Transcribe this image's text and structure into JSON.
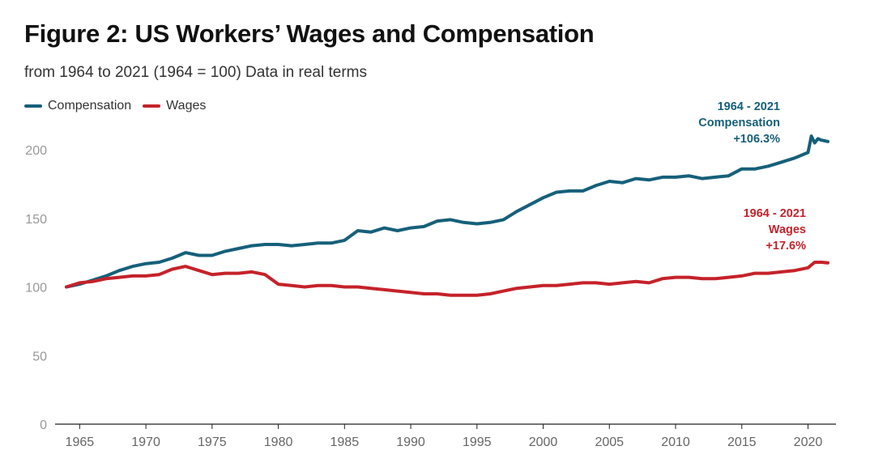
{
  "header": {
    "title": "Figure 2: US Workers’ Wages and Compensation",
    "subtitle": "from 1964 to 2021 (1964 = 100) Data in real terms"
  },
  "legend": {
    "items": [
      {
        "label": "Compensation",
        "color": "#16607a"
      },
      {
        "label": "Wages",
        "color": "#c5222a"
      }
    ]
  },
  "annotations": {
    "compensation": {
      "line1": "1964 - 2021",
      "line2": "Compensation",
      "line3": "+106.3%",
      "color": "#16607a"
    },
    "wages": {
      "line1": "1964 - 2021",
      "line2": "Wages",
      "line3": "+17.6%",
      "color": "#c5222a"
    }
  },
  "chart_data": {
    "type": "line",
    "title": "Figure 2: US Workers’ Wages and Compensation",
    "subtitle": "from 1964 to 2021 (1964 = 100) Data in real terms",
    "xlabel": "",
    "ylabel": "",
    "xlim": [
      1963.5,
      2022.5
    ],
    "ylim": [
      0,
      200
    ],
    "yticks": [
      0,
      50,
      100,
      150,
      200
    ],
    "xticks": [
      1965,
      1970,
      1975,
      1980,
      1985,
      1990,
      1995,
      2000,
      2005,
      2010,
      2015,
      2020
    ],
    "grid": false,
    "legend_position": "top-left",
    "series": [
      {
        "name": "Compensation",
        "color": "#16607a",
        "x": [
          1964,
          1965,
          1966,
          1967,
          1968,
          1969,
          1970,
          1971,
          1972,
          1973,
          1974,
          1975,
          1976,
          1977,
          1978,
          1979,
          1980,
          1981,
          1982,
          1983,
          1984,
          1985,
          1986,
          1987,
          1988,
          1989,
          1990,
          1991,
          1992,
          1993,
          1994,
          1995,
          1996,
          1997,
          1998,
          1999,
          2000,
          2001,
          2002,
          2003,
          2004,
          2005,
          2006,
          2007,
          2008,
          2009,
          2010,
          2011,
          2012,
          2013,
          2014,
          2015,
          2016,
          2017,
          2018,
          2019,
          2020,
          2020.25,
          2020.5,
          2020.75,
          2021,
          2021.5
        ],
        "values": [
          100,
          102,
          105,
          108,
          112,
          115,
          117,
          118,
          121,
          125,
          123,
          123,
          126,
          128,
          130,
          131,
          131,
          130,
          131,
          132,
          132,
          134,
          141,
          140,
          143,
          141,
          143,
          144,
          148,
          149,
          147,
          146,
          147,
          149,
          155,
          160,
          165,
          169,
          170,
          170,
          174,
          177,
          176,
          179,
          178,
          180,
          180,
          181,
          179,
          180,
          181,
          186,
          186,
          188,
          191,
          194,
          198,
          210,
          205,
          208,
          207,
          206
        ]
      },
      {
        "name": "Wages",
        "color": "#c5222a",
        "x": [
          1964,
          1965,
          1966,
          1967,
          1968,
          1969,
          1970,
          1971,
          1972,
          1973,
          1974,
          1975,
          1976,
          1977,
          1978,
          1979,
          1980,
          1981,
          1982,
          1983,
          1984,
          1985,
          1986,
          1987,
          1988,
          1989,
          1990,
          1991,
          1992,
          1993,
          1994,
          1995,
          1996,
          1997,
          1998,
          1999,
          2000,
          2001,
          2002,
          2003,
          2004,
          2005,
          2006,
          2007,
          2008,
          2009,
          2010,
          2011,
          2012,
          2013,
          2014,
          2015,
          2016,
          2017,
          2018,
          2019,
          2020,
          2020.5,
          2021,
          2021.5
        ],
        "values": [
          100,
          103,
          104,
          106,
          107,
          108,
          108,
          109,
          113,
          115,
          112,
          109,
          110,
          110,
          111,
          109,
          102,
          101,
          100,
          101,
          101,
          100,
          100,
          99,
          98,
          97,
          96,
          95,
          95,
          94,
          94,
          94,
          95,
          97,
          99,
          100,
          101,
          101,
          102,
          103,
          103,
          102,
          103,
          104,
          103,
          106,
          107,
          107,
          106,
          106,
          107,
          108,
          110,
          110,
          111,
          112,
          114,
          118,
          118,
          117.6
        ]
      }
    ]
  }
}
